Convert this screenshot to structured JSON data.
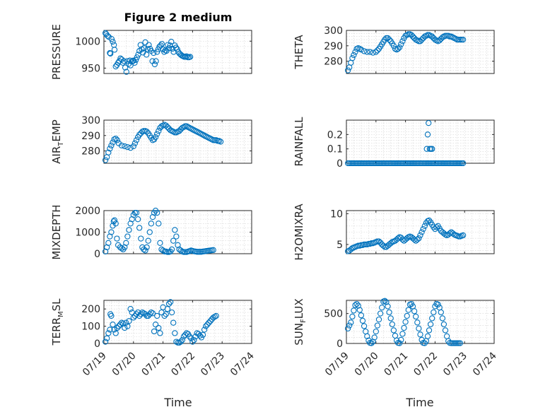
{
  "figure": {
    "title": "Figure 2 medium",
    "xlabel": "Time",
    "x_tick_labels": [
      "07/19",
      "07/20",
      "07/21",
      "07/22",
      "07/23",
      "07/24"
    ],
    "marker_color": "#0072bd"
  },
  "chart_data": [
    {
      "type": "scatter",
      "ylabel": "PRESSURE",
      "title": "Figure 2 medium",
      "xlim": [
        0,
        5
      ],
      "ylim": [
        940,
        1020
      ],
      "yticks": [
        950,
        1000
      ],
      "x": [
        0.05,
        0.08,
        0.12,
        0.16,
        0.2,
        0.22,
        0.26,
        0.3,
        0.34,
        0.36,
        0.4,
        0.44,
        0.48,
        0.52,
        0.56,
        0.6,
        0.64,
        0.68,
        0.72,
        0.76,
        0.8,
        0.84,
        0.88,
        0.9,
        0.94,
        0.98,
        1.0,
        1.04,
        1.08,
        1.12,
        1.16,
        1.2,
        1.24,
        1.28,
        1.32,
        1.36,
        1.4,
        1.44,
        1.48,
        1.52,
        1.56,
        1.6,
        1.64,
        1.68,
        1.72,
        1.76,
        1.8,
        1.84,
        1.88,
        1.92,
        1.96,
        2.0,
        2.04,
        2.08,
        2.12,
        2.16,
        2.2,
        2.24,
        2.28,
        2.32,
        2.36,
        2.4,
        2.44,
        2.48,
        2.52,
        2.56,
        2.6,
        2.64,
        2.68,
        2.72,
        2.76,
        2.8,
        2.84,
        2.88,
        2.92
      ],
      "y": [
        1015,
        1013,
        1010,
        1008,
        978,
        977,
        1004,
        999,
        993,
        984,
        953,
        956,
        960,
        963,
        968,
        966,
        960,
        963,
        951,
        943,
        963,
        958,
        964,
        955,
        962,
        963,
        964,
        960,
        965,
        970,
        975,
        982,
        993,
        985,
        979,
        987,
        998,
        975,
        985,
        993,
        986,
        982,
        963,
        978,
        957,
        963,
        980,
        985,
        990,
        992,
        995,
        985,
        980,
        983,
        982,
        993,
        987,
        992,
        999,
        986,
        980,
        992,
        988,
        985,
        980,
        977,
        975,
        973,
        972,
        971,
        971,
        972,
        970,
        970,
        971
      ]
    },
    {
      "type": "scatter",
      "ylabel": "THETA",
      "xlim": [
        0,
        5
      ],
      "ylim": [
        272,
        300
      ],
      "yticks": [
        280,
        290,
        300
      ],
      "x": [
        0.05,
        0.1,
        0.15,
        0.2,
        0.25,
        0.3,
        0.35,
        0.4,
        0.45,
        0.5,
        0.6,
        0.7,
        0.8,
        0.9,
        1.0,
        1.05,
        1.1,
        1.15,
        1.2,
        1.25,
        1.3,
        1.35,
        1.4,
        1.45,
        1.5,
        1.55,
        1.6,
        1.65,
        1.7,
        1.75,
        1.8,
        1.85,
        1.9,
        1.95,
        2.0,
        2.05,
        2.1,
        2.15,
        2.2,
        2.25,
        2.3,
        2.35,
        2.4,
        2.45,
        2.5,
        2.55,
        2.6,
        2.65,
        2.7,
        2.75,
        2.8,
        2.85,
        2.9,
        2.95,
        3.0,
        3.05,
        3.1,
        3.15,
        3.2,
        3.25,
        3.3,
        3.35,
        3.4,
        3.45,
        3.5,
        3.55,
        3.6,
        3.65,
        3.7,
        3.75,
        3.8,
        3.85,
        3.9,
        3.95
      ],
      "y": [
        274,
        276,
        279,
        282,
        284,
        286,
        288,
        288.5,
        288,
        287.5,
        286.5,
        286,
        286,
        285.5,
        286,
        287,
        288,
        289.5,
        291,
        292.5,
        294,
        295,
        295,
        294,
        293,
        291.5,
        290,
        288,
        287.5,
        288,
        289,
        291,
        293,
        295,
        296.5,
        297,
        297.5,
        297.5,
        297,
        296,
        295,
        294,
        293.5,
        293,
        293,
        294,
        295,
        296,
        296.5,
        297,
        297,
        296.5,
        296,
        295,
        294,
        293.5,
        293,
        293.5,
        294.5,
        295.5,
        296,
        296.5,
        296.5,
        296.5,
        296,
        296,
        295.5,
        295,
        294.5,
        294,
        294,
        294,
        294,
        294
      ]
    },
    {
      "type": "scatter",
      "ylabel": "AIR_TEMP",
      "xlim": [
        0,
        5
      ],
      "ylim": [
        272,
        300
      ],
      "yticks": [
        280,
        290,
        300
      ],
      "x": [
        0.05,
        0.1,
        0.15,
        0.2,
        0.25,
        0.3,
        0.35,
        0.4,
        0.45,
        0.5,
        0.6,
        0.7,
        0.8,
        0.9,
        1.0,
        1.05,
        1.1,
        1.15,
        1.2,
        1.25,
        1.3,
        1.35,
        1.4,
        1.45,
        1.5,
        1.55,
        1.6,
        1.65,
        1.7,
        1.75,
        1.8,
        1.85,
        1.9,
        1.95,
        2.0,
        2.05,
        2.1,
        2.15,
        2.2,
        2.25,
        2.3,
        2.35,
        2.4,
        2.45,
        2.5,
        2.55,
        2.6,
        2.65,
        2.7,
        2.75,
        2.8,
        2.85,
        2.9,
        2.95,
        3.0,
        3.05,
        3.1,
        3.15,
        3.2,
        3.25,
        3.3,
        3.35,
        3.4,
        3.45,
        3.5,
        3.55,
        3.6,
        3.65,
        3.7,
        3.75,
        3.8,
        3.85,
        3.9,
        3.95
      ],
      "y": [
        274,
        276,
        279,
        281.5,
        283.5,
        285.5,
        287.5,
        288,
        287,
        285,
        283.5,
        283,
        282.5,
        282,
        283,
        285,
        287,
        289,
        290.5,
        291.5,
        292.5,
        293,
        293,
        292.5,
        291.5,
        290,
        288.5,
        287,
        287.5,
        289,
        291,
        293,
        295,
        296,
        296.5,
        297,
        296.5,
        295.5,
        294.5,
        293.5,
        293,
        292.5,
        292,
        292,
        292.5,
        293,
        294,
        295,
        295.5,
        296,
        296,
        295.5,
        295,
        294.5,
        294,
        293.5,
        293,
        292.5,
        292,
        291.5,
        291,
        290.5,
        290,
        289.5,
        289,
        288.5,
        288,
        287.5,
        287,
        287,
        287,
        286.5,
        286.5,
        286
      ]
    },
    {
      "type": "scatter",
      "ylabel": "RAINFALL",
      "xlim": [
        0,
        5
      ],
      "ylim": [
        0,
        0.3
      ],
      "yticks": [
        0,
        0.1,
        0.2
      ],
      "x": [
        0.05,
        0.1,
        0.15,
        0.2,
        0.25,
        0.3,
        0.35,
        0.4,
        0.45,
        0.5,
        0.55,
        0.6,
        0.65,
        0.7,
        0.75,
        0.8,
        0.85,
        0.9,
        0.95,
        1.0,
        1.05,
        1.1,
        1.15,
        1.2,
        1.25,
        1.3,
        1.35,
        1.4,
        1.45,
        1.5,
        1.55,
        1.6,
        1.65,
        1.7,
        1.75,
        1.8,
        1.85,
        1.9,
        1.95,
        2.0,
        2.05,
        2.1,
        2.15,
        2.2,
        2.25,
        2.3,
        2.35,
        2.4,
        2.45,
        2.5,
        2.55,
        2.6,
        2.65,
        2.7,
        2.75,
        2.8,
        2.85,
        2.9,
        2.95,
        3.0,
        3.05,
        3.1,
        3.15,
        3.2,
        3.25,
        3.3,
        3.35,
        3.4,
        3.45,
        3.5,
        3.55,
        3.6,
        3.65,
        3.7,
        3.75,
        3.8,
        3.85,
        3.9,
        3.95,
        2.72,
        2.75,
        2.78,
        2.82,
        2.86,
        2.9
      ],
      "y": [
        0,
        0,
        0,
        0,
        0,
        0,
        0,
        0,
        0,
        0,
        0,
        0,
        0,
        0,
        0,
        0,
        0,
        0,
        0,
        0,
        0,
        0,
        0,
        0,
        0,
        0,
        0,
        0,
        0,
        0,
        0,
        0,
        0,
        0,
        0,
        0,
        0,
        0,
        0,
        0,
        0,
        0,
        0,
        0,
        0,
        0,
        0,
        0,
        0,
        0,
        0,
        0,
        0,
        0,
        0,
        0,
        0,
        0,
        0,
        0,
        0,
        0,
        0,
        0,
        0,
        0,
        0,
        0,
        0,
        0,
        0,
        0,
        0,
        0,
        0,
        0,
        0,
        0,
        0,
        0.1,
        0.2,
        0.28,
        0.1,
        0.1,
        0.1
      ]
    },
    {
      "type": "scatter",
      "ylabel": "MIXDEPTH",
      "xlim": [
        0,
        5
      ],
      "ylim": [
        0,
        2000
      ],
      "yticks": [
        0,
        1000,
        2000
      ],
      "x": [
        0.05,
        0.1,
        0.15,
        0.2,
        0.25,
        0.3,
        0.33,
        0.36,
        0.4,
        0.44,
        0.48,
        0.55,
        0.6,
        0.65,
        0.7,
        0.75,
        0.8,
        0.85,
        0.9,
        0.95,
        1.0,
        1.05,
        1.1,
        1.15,
        1.2,
        1.25,
        1.3,
        1.35,
        1.4,
        1.45,
        1.5,
        1.55,
        1.6,
        1.65,
        1.7,
        1.75,
        1.8,
        1.85,
        1.9,
        1.95,
        2.0,
        2.05,
        2.1,
        2.15,
        2.2,
        2.25,
        2.3,
        2.35,
        2.4,
        2.45,
        2.5,
        2.55,
        2.6,
        2.65,
        2.7,
        2.75,
        2.8,
        2.85,
        2.9,
        2.95,
        3.0,
        3.05,
        3.1,
        3.15,
        3.2,
        3.25,
        3.3,
        3.35,
        3.4,
        3.45,
        3.5,
        3.55,
        3.6,
        3.65,
        3.7
      ],
      "y": [
        100,
        300,
        500,
        800,
        1000,
        1300,
        1500,
        1550,
        1400,
        700,
        400,
        300,
        250,
        200,
        300,
        500,
        800,
        1100,
        1400,
        1600,
        1800,
        1900,
        1900,
        1600,
        1200,
        700,
        300,
        200,
        150,
        300,
        600,
        1000,
        1400,
        1700,
        1900,
        2000,
        1900,
        1400,
        500,
        200,
        150,
        100,
        100,
        80,
        80,
        100,
        200,
        600,
        1100,
        800,
        400,
        200,
        150,
        100,
        80,
        80,
        80,
        100,
        120,
        150,
        130,
        110,
        100,
        90,
        90,
        90,
        90,
        100,
        110,
        120,
        130,
        140,
        150,
        160,
        170
      ]
    },
    {
      "type": "scatter",
      "ylabel": "H2OMIXRA",
      "xlim": [
        0,
        5
      ],
      "ylim": [
        3.5,
        10.5
      ],
      "yticks": [
        5,
        10
      ],
      "x": [
        0.05,
        0.1,
        0.15,
        0.2,
        0.25,
        0.3,
        0.35,
        0.4,
        0.45,
        0.5,
        0.55,
        0.6,
        0.65,
        0.7,
        0.75,
        0.8,
        0.85,
        0.9,
        0.95,
        1.0,
        1.05,
        1.1,
        1.15,
        1.2,
        1.25,
        1.3,
        1.35,
        1.4,
        1.45,
        1.5,
        1.55,
        1.6,
        1.65,
        1.7,
        1.75,
        1.8,
        1.85,
        1.9,
        1.95,
        2.0,
        2.05,
        2.1,
        2.15,
        2.2,
        2.25,
        2.3,
        2.35,
        2.4,
        2.45,
        2.5,
        2.55,
        2.6,
        2.65,
        2.7,
        2.75,
        2.8,
        2.85,
        2.9,
        2.95,
        3.0,
        3.05,
        3.1,
        3.15,
        3.2,
        3.25,
        3.3,
        3.35,
        3.4,
        3.45,
        3.5,
        3.55,
        3.6,
        3.65,
        3.7,
        3.75,
        3.8,
        3.85,
        3.9,
        3.95
      ],
      "y": [
        3.9,
        4.0,
        4.2,
        4.4,
        4.5,
        4.6,
        4.7,
        4.8,
        4.8,
        4.9,
        4.9,
        5.0,
        5.0,
        5.0,
        5.1,
        5.1,
        5.2,
        5.2,
        5.3,
        5.4,
        5.5,
        5.5,
        5.3,
        5.0,
        4.8,
        4.6,
        4.6,
        4.8,
        5.0,
        5.2,
        5.4,
        5.5,
        5.6,
        5.8,
        6.0,
        6.2,
        6.1,
        5.8,
        5.6,
        5.8,
        6.0,
        6.2,
        6.3,
        6.2,
        6.0,
        5.8,
        5.6,
        5.8,
        6.0,
        6.5,
        7.0,
        7.5,
        8.0,
        8.5,
        8.8,
        8.9,
        8.6,
        8.2,
        7.8,
        7.5,
        7.8,
        8.0,
        7.6,
        7.2,
        7.0,
        6.8,
        6.6,
        6.5,
        6.6,
        6.8,
        7.0,
        6.8,
        6.6,
        6.5,
        6.4,
        6.3,
        6.3,
        6.4,
        6.5
      ]
    },
    {
      "type": "scatter",
      "ylabel": "TERR_MSL",
      "xlim": [
        0,
        5
      ],
      "ylim": [
        0,
        250
      ],
      "yticks": [
        0,
        100,
        200
      ],
      "x": [
        0.05,
        0.1,
        0.15,
        0.2,
        0.22,
        0.25,
        0.3,
        0.35,
        0.4,
        0.45,
        0.5,
        0.55,
        0.6,
        0.65,
        0.7,
        0.75,
        0.8,
        0.85,
        0.9,
        0.95,
        1.0,
        1.05,
        1.1,
        1.15,
        1.2,
        1.25,
        1.3,
        1.35,
        1.4,
        1.45,
        1.5,
        1.55,
        1.6,
        1.65,
        1.7,
        1.75,
        1.8,
        1.85,
        1.9,
        1.95,
        2.0,
        2.05,
        2.1,
        2.15,
        2.2,
        2.25,
        2.3,
        2.35,
        2.4,
        2.45,
        2.5,
        2.55,
        2.6,
        2.65,
        2.7,
        2.75,
        2.8,
        2.85,
        2.9,
        2.95,
        3.0,
        3.05,
        3.1,
        3.15,
        3.2,
        3.25,
        3.3,
        3.35,
        3.4,
        3.45,
        3.5,
        3.55,
        3.6,
        3.65,
        3.7,
        3.75,
        3.8
      ],
      "y": [
        10,
        30,
        60,
        80,
        170,
        160,
        110,
        80,
        60,
        90,
        100,
        110,
        120,
        115,
        90,
        120,
        100,
        130,
        200,
        180,
        150,
        160,
        170,
        180,
        160,
        170,
        180,
        175,
        170,
        160,
        160,
        170,
        180,
        175,
        70,
        110,
        160,
        90,
        60,
        180,
        210,
        160,
        170,
        200,
        230,
        240,
        180,
        120,
        60,
        10,
        5,
        5,
        10,
        20,
        40,
        50,
        60,
        55,
        40,
        30,
        10,
        20,
        40,
        60,
        55,
        45,
        35,
        50,
        80,
        100,
        110,
        120,
        130,
        140,
        150,
        155,
        160
      ]
    },
    {
      "type": "scatter",
      "ylabel": "SUN_FLUX",
      "xlim": [
        0,
        5
      ],
      "ylim": [
        0,
        720
      ],
      "yticks": [
        0,
        500
      ],
      "x": [
        0.05,
        0.1,
        0.15,
        0.2,
        0.25,
        0.3,
        0.35,
        0.4,
        0.45,
        0.5,
        0.55,
        0.6,
        0.65,
        0.7,
        0.75,
        0.8,
        0.85,
        0.9,
        0.95,
        1.0,
        1.05,
        1.1,
        1.15,
        1.2,
        1.25,
        1.3,
        1.35,
        1.4,
        1.45,
        1.5,
        1.55,
        1.6,
        1.65,
        1.7,
        1.75,
        1.8,
        1.85,
        1.9,
        1.95,
        2.0,
        2.05,
        2.1,
        2.15,
        2.2,
        2.25,
        2.3,
        2.35,
        2.4,
        2.45,
        2.5,
        2.55,
        2.6,
        2.65,
        2.7,
        2.75,
        2.8,
        2.85,
        2.9,
        2.95,
        3.0,
        3.05,
        3.1,
        3.15,
        3.2,
        3.25,
        3.3,
        3.35,
        3.4,
        3.45,
        3.5,
        3.55,
        3.6,
        3.65,
        3.7,
        3.75,
        3.8,
        3.85
      ],
      "y": [
        250,
        300,
        350,
        450,
        550,
        640,
        660,
        630,
        560,
        470,
        380,
        290,
        200,
        120,
        50,
        10,
        5,
        30,
        100,
        200,
        300,
        400,
        500,
        600,
        700,
        710,
        690,
        620,
        520,
        420,
        320,
        220,
        130,
        50,
        10,
        5,
        60,
        160,
        260,
        360,
        460,
        560,
        650,
        660,
        620,
        540,
        450,
        350,
        250,
        150,
        60,
        10,
        5,
        40,
        120,
        220,
        320,
        420,
        520,
        620,
        660,
        650,
        600,
        520,
        420,
        320,
        220,
        120,
        40,
        10,
        5,
        5,
        5,
        5,
        5,
        5,
        5
      ]
    }
  ]
}
